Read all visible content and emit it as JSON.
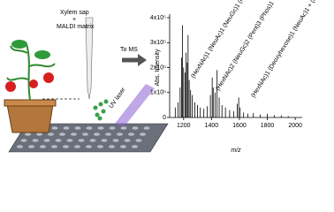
{
  "schematic": {
    "sample_label_1": "Xylem sap",
    "sample_label_2": "+",
    "sample_label_3": "MALDI matrix",
    "arrow_label": "To MS",
    "laser_label": "UV laser"
  },
  "chart_data": {
    "type": "spectrum",
    "color": "#000000",
    "xlabel": "m/z",
    "ylabel": "Abs. Intensity",
    "xlim": [
      1100,
      2050
    ],
    "xticks": [
      1200,
      1400,
      1600,
      1800,
      2000
    ],
    "ylim": [
      0,
      400000
    ],
    "yticks": [
      0,
      {
        "value": 100000,
        "label": "1x10⁵"
      },
      {
        "value": 200000,
        "label": "2x10⁵"
      },
      {
        "value": 300000,
        "label": "3x10⁵"
      },
      {
        "value": 400000,
        "label": "4x10⁵"
      }
    ],
    "x": [
      1140,
      1160,
      1175,
      1185,
      1192,
      1200,
      1210,
      1218,
      1226,
      1232,
      1240,
      1250,
      1262,
      1280,
      1300,
      1320,
      1345,
      1370,
      1392,
      1405,
      1412,
      1425,
      1440,
      1455,
      1475,
      1500,
      1530,
      1560,
      1585,
      1595,
      1605,
      1630,
      1660,
      1700,
      1750,
      1800,
      1850,
      1900,
      1950
    ],
    "values": [
      40000,
      60000,
      120000,
      240000,
      370000,
      200000,
      180000,
      260000,
      220000,
      330000,
      150000,
      110000,
      90000,
      60000,
      50000,
      40000,
      35000,
      45000,
      90000,
      160000,
      120000,
      100000,
      190000,
      80000,
      50000,
      40000,
      30000,
      25000,
      55000,
      80000,
      40000,
      20000,
      15000,
      18000,
      12000,
      14000,
      9000,
      8000,
      6000
    ],
    "annotations": [
      "(HexNAc)1 (NeuAc)1 (NeuGc)1 (Phos)1",
      "(HexNAc)2 (NeuGc)2 (Pent)3 (Phos)1",
      "(HexNAc)1 (Deoxyhexose)1 (NeuAc)1 + (Man)3(GlcNAc)1"
    ]
  }
}
